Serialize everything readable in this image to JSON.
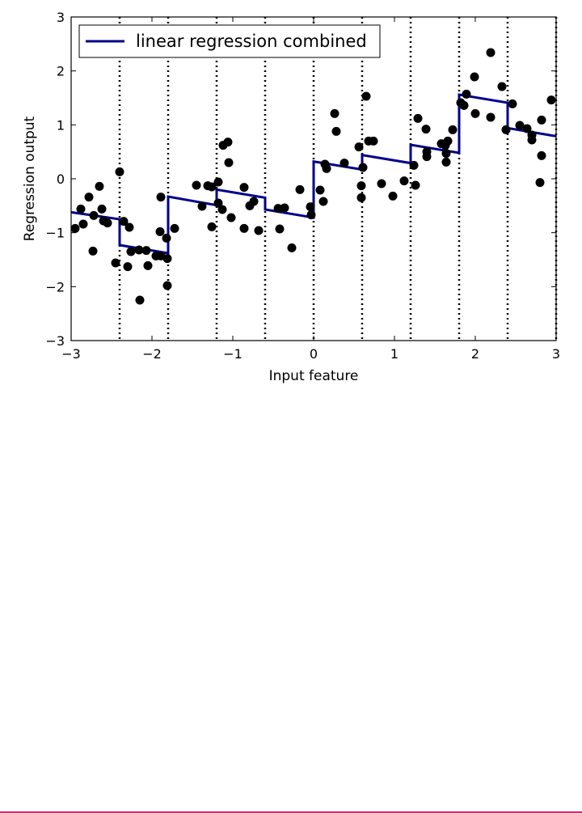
{
  "chart_data": {
    "type": "scatter",
    "xlabel": "Input feature",
    "ylabel": "Regression output",
    "xlim": [
      -3,
      3
    ],
    "ylim": [
      -3,
      3
    ],
    "xticks": [
      -3,
      -2,
      -1,
      0,
      1,
      2,
      3
    ],
    "yticks": [
      -3,
      -2,
      -1,
      0,
      1,
      2,
      3
    ],
    "xtick_labels": [
      "−3",
      "−2",
      "−1",
      "0",
      "1",
      "2",
      "3"
    ],
    "ytick_labels": [
      "−3",
      "−2",
      "−1",
      "0",
      "1",
      "2",
      "3"
    ],
    "grid": false,
    "legend": {
      "position": "top-left",
      "entries": [
        "linear regression combined"
      ]
    },
    "bin_edges": [
      -2.4,
      -1.8,
      -1.2,
      -0.6,
      0,
      0.6,
      1.2,
      1.8,
      2.4,
      3
    ],
    "line_series": {
      "name": "linear regression combined",
      "color": "#00008b",
      "segments": [
        {
          "x": [
            -3.0,
            -2.4
          ],
          "y": [
            -0.62,
            -0.75
          ]
        },
        {
          "x": [
            -2.4,
            -1.8
          ],
          "y": [
            -1.23,
            -1.38
          ]
        },
        {
          "x": [
            -1.8,
            -1.2
          ],
          "y": [
            -0.33,
            -0.49
          ]
        },
        {
          "x": [
            -1.2,
            -0.6
          ],
          "y": [
            -0.2,
            -0.35
          ]
        },
        {
          "x": [
            -0.6,
            0.0
          ],
          "y": [
            -0.57,
            -0.72
          ]
        },
        {
          "x": [
            0.0,
            0.6
          ],
          "y": [
            0.32,
            0.17
          ]
        },
        {
          "x": [
            0.6,
            1.2
          ],
          "y": [
            0.44,
            0.29
          ]
        },
        {
          "x": [
            1.2,
            1.8
          ],
          "y": [
            0.63,
            0.48
          ]
        },
        {
          "x": [
            1.8,
            2.4
          ],
          "y": [
            1.56,
            1.41
          ]
        },
        {
          "x": [
            2.4,
            3.0
          ],
          "y": [
            0.94,
            0.79
          ]
        }
      ]
    },
    "points_color": "#000000",
    "points": [
      [
        -2.95,
        -0.92
      ],
      [
        -2.88,
        -0.56
      ],
      [
        -2.85,
        -0.84
      ],
      [
        -2.78,
        -0.34
      ],
      [
        -2.73,
        -1.34
      ],
      [
        -2.72,
        -0.68
      ],
      [
        -2.65,
        -0.14
      ],
      [
        -2.62,
        -0.56
      ],
      [
        -2.6,
        -0.78
      ],
      [
        -2.55,
        -0.82
      ],
      [
        -2.45,
        -1.56
      ],
      [
        -2.4,
        0.13
      ],
      [
        -2.35,
        -0.79
      ],
      [
        -2.3,
        -1.63
      ],
      [
        -2.28,
        -0.9
      ],
      [
        -2.26,
        -1.35
      ],
      [
        -2.16,
        -1.32
      ],
      [
        -2.15,
        -2.25
      ],
      [
        -2.07,
        -1.33
      ],
      [
        -2.05,
        -1.61
      ],
      [
        -1.95,
        -1.43
      ],
      [
        -1.9,
        -0.98
      ],
      [
        -1.89,
        -0.34
      ],
      [
        -1.89,
        -1.43
      ],
      [
        -1.82,
        -1.1
      ],
      [
        -1.81,
        -1.48
      ],
      [
        -1.81,
        -1.98
      ],
      [
        -1.72,
        -0.92
      ],
      [
        -1.45,
        -0.12
      ],
      [
        -1.38,
        -0.51
      ],
      [
        -1.31,
        -0.13
      ],
      [
        -1.26,
        -0.15
      ],
      [
        -1.26,
        -0.89
      ],
      [
        -1.18,
        -0.06
      ],
      [
        -1.18,
        -0.45
      ],
      [
        -1.13,
        -0.57
      ],
      [
        -1.12,
        0.62
      ],
      [
        -1.06,
        0.68
      ],
      [
        -1.05,
        0.3
      ],
      [
        -1.02,
        -0.72
      ],
      [
        -0.86,
        -0.16
      ],
      [
        -0.86,
        -0.92
      ],
      [
        -0.79,
        -0.5
      ],
      [
        -0.74,
        -0.42
      ],
      [
        -0.68,
        -0.96
      ],
      [
        -0.44,
        -0.55
      ],
      [
        -0.42,
        -0.93
      ],
      [
        -0.36,
        -0.54
      ],
      [
        -0.27,
        -1.28
      ],
      [
        -0.17,
        -0.2
      ],
      [
        -0.04,
        -0.52
      ],
      [
        -0.03,
        -0.67
      ],
      [
        0.08,
        -0.21
      ],
      [
        0.12,
        -0.42
      ],
      [
        0.14,
        0.27
      ],
      [
        0.16,
        0.19
      ],
      [
        0.26,
        1.21
      ],
      [
        0.28,
        0.88
      ],
      [
        0.38,
        0.29
      ],
      [
        0.56,
        0.59
      ],
      [
        0.59,
        -0.13
      ],
      [
        0.59,
        -0.35
      ],
      [
        0.61,
        0.21
      ],
      [
        0.65,
        1.53
      ],
      [
        0.68,
        0.7
      ],
      [
        0.74,
        0.7
      ],
      [
        0.84,
        -0.09
      ],
      [
        0.98,
        -0.32
      ],
      [
        1.12,
        -0.04
      ],
      [
        1.24,
        0.25
      ],
      [
        1.26,
        -0.12
      ],
      [
        1.29,
        1.12
      ],
      [
        1.39,
        0.92
      ],
      [
        1.4,
        0.5
      ],
      [
        1.4,
        0.41
      ],
      [
        1.58,
        0.65
      ],
      [
        1.63,
        0.62
      ],
      [
        1.64,
        0.47
      ],
      [
        1.64,
        0.31
      ],
      [
        1.66,
        0.7
      ],
      [
        1.72,
        0.91
      ],
      [
        1.82,
        1.41
      ],
      [
        1.86,
        1.36
      ],
      [
        1.89,
        1.57
      ],
      [
        1.99,
        1.89
      ],
      [
        2.0,
        1.21
      ],
      [
        2.19,
        2.34
      ],
      [
        2.19,
        1.14
      ],
      [
        2.33,
        1.71
      ],
      [
        2.38,
        0.91
      ],
      [
        2.46,
        1.39
      ],
      [
        2.55,
        0.99
      ],
      [
        2.64,
        0.93
      ],
      [
        2.7,
        0.72
      ],
      [
        2.7,
        0.81
      ],
      [
        2.8,
        -0.07
      ],
      [
        2.82,
        0.43
      ],
      [
        2.82,
        1.09
      ],
      [
        2.94,
        1.46
      ]
    ]
  }
}
